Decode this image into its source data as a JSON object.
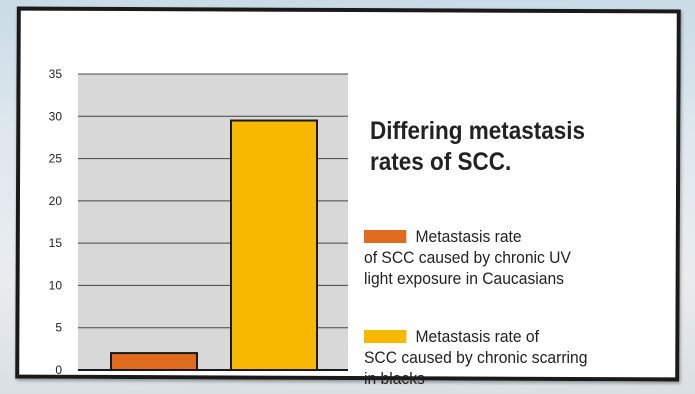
{
  "chart_data": {
    "type": "bar",
    "title": "Differing metastasis\nrates of SCC.",
    "ylim": [
      0,
      35
    ],
    "yticks": [
      0,
      5,
      10,
      15,
      20,
      25,
      30,
      35
    ],
    "grid": true,
    "legend_placement": "right",
    "series": [
      {
        "name": "Metastasis rate\nof SCC caused by chronic UV\nlight exposure in Caucasians",
        "value": 2,
        "color": "#e06a1e"
      },
      {
        "name": "Metastasis rate of\nSCC caused by chronic scarring\nin blacks",
        "value": 29.5,
        "color": "#f8b800"
      }
    ],
    "colors": {
      "plot_background": "#d8d8d8",
      "axis": "#1a1a1a",
      "bar_outline": "#1a1a1a"
    }
  }
}
